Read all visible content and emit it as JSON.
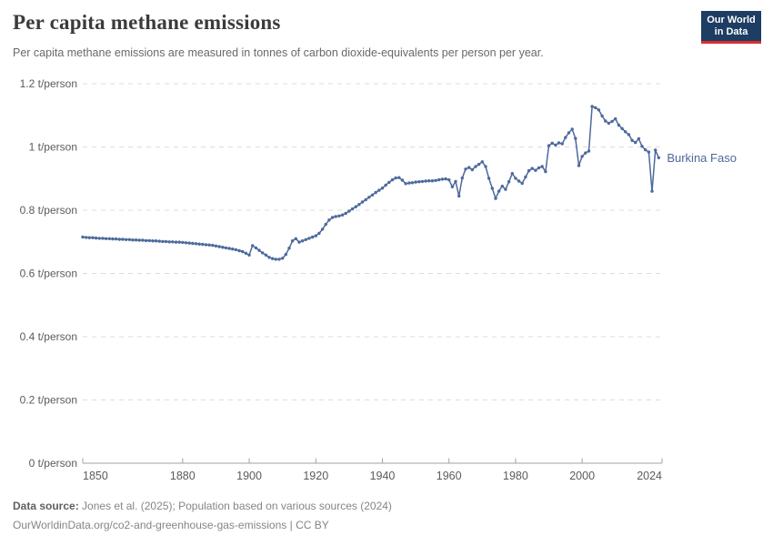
{
  "header": {
    "title": "Per capita methane emissions",
    "subtitle": "Per capita methane emissions are measured in tonnes of carbon dioxide-equivalents per person per year.",
    "logo": {
      "line1": "Our World",
      "line2": "in Data",
      "bg_color": "#1d3d63",
      "accent_color": "#d7302f"
    }
  },
  "chart_data": {
    "type": "line",
    "title": "Per capita methane emissions",
    "xlabel": "",
    "ylabel": "t/person",
    "xlim": [
      1850,
      2024
    ],
    "ylim": [
      0,
      1.2
    ],
    "grid": "horizontal-dashed",
    "legend_position": "end-of-line-label",
    "x_ticks": [
      {
        "v": 1850,
        "label": "1850"
      },
      {
        "v": 1880,
        "label": "1880"
      },
      {
        "v": 1900,
        "label": "1900"
      },
      {
        "v": 1920,
        "label": "1920"
      },
      {
        "v": 1940,
        "label": "1940"
      },
      {
        "v": 1960,
        "label": "1960"
      },
      {
        "v": 1980,
        "label": "1980"
      },
      {
        "v": 2000,
        "label": "2000"
      },
      {
        "v": 2024,
        "label": "2024"
      }
    ],
    "y_ticks": [
      {
        "v": 0,
        "label": "0 t/person"
      },
      {
        "v": 0.2,
        "label": "0.2 t/person"
      },
      {
        "v": 0.4,
        "label": "0.4 t/person"
      },
      {
        "v": 0.6,
        "label": "0.6 t/person"
      },
      {
        "v": 0.8,
        "label": "0.8 t/person"
      },
      {
        "v": 1,
        "label": "1 t/person"
      },
      {
        "v": 1.2,
        "label": "1.2 t/person"
      }
    ],
    "series": [
      {
        "name": "Burkina Faso",
        "color": "#4c6a9c",
        "x_start": 1850,
        "x_step": 1,
        "values": [
          0.715,
          0.714,
          0.713,
          0.713,
          0.712,
          0.711,
          0.711,
          0.71,
          0.71,
          0.709,
          0.709,
          0.708,
          0.708,
          0.707,
          0.707,
          0.706,
          0.706,
          0.705,
          0.705,
          0.704,
          0.704,
          0.703,
          0.703,
          0.702,
          0.701,
          0.701,
          0.7,
          0.7,
          0.699,
          0.699,
          0.698,
          0.697,
          0.696,
          0.695,
          0.694,
          0.693,
          0.692,
          0.691,
          0.69,
          0.689,
          0.687,
          0.685,
          0.683,
          0.681,
          0.679,
          0.677,
          0.675,
          0.672,
          0.669,
          0.664,
          0.658,
          0.688,
          0.681,
          0.673,
          0.665,
          0.658,
          0.651,
          0.647,
          0.645,
          0.645,
          0.648,
          0.66,
          0.68,
          0.703,
          0.71,
          0.699,
          0.703,
          0.707,
          0.711,
          0.715,
          0.719,
          0.727,
          0.74,
          0.755,
          0.769,
          0.777,
          0.78,
          0.782,
          0.785,
          0.79,
          0.797,
          0.804,
          0.811,
          0.818,
          0.826,
          0.833,
          0.841,
          0.848,
          0.856,
          0.863,
          0.87,
          0.879,
          0.888,
          0.896,
          0.902,
          0.903,
          0.895,
          0.884,
          0.886,
          0.887,
          0.889,
          0.89,
          0.891,
          0.892,
          0.893,
          0.893,
          0.894,
          0.896,
          0.898,
          0.899,
          0.896,
          0.874,
          0.891,
          0.845,
          0.902,
          0.93,
          0.935,
          0.928,
          0.938,
          0.945,
          0.953,
          0.938,
          0.901,
          0.869,
          0.837,
          0.86,
          0.876,
          0.866,
          0.89,
          0.916,
          0.901,
          0.892,
          0.885,
          0.905,
          0.925,
          0.932,
          0.926,
          0.934,
          0.938,
          0.922,
          1.004,
          1.012,
          1.006,
          1.013,
          1.01,
          1.03,
          1.045,
          1.056,
          1.027,
          0.941,
          0.97,
          0.981,
          0.987,
          1.128,
          1.124,
          1.117,
          1.098,
          1.082,
          1.075,
          1.081,
          1.089,
          1.069,
          1.058,
          1.048,
          1.039,
          1.021,
          1.014,
          1.026,
          1.002,
          0.991,
          0.984,
          0.86,
          0.99,
          0.966
        ],
        "end_label": "Burkina Faso"
      }
    ]
  },
  "footer": {
    "datasource_label": "Data source:",
    "datasource_text": "Jones et al. (2025); Population based on various sources (2024)",
    "url": "OurWorldinData.org/co2-and-greenhouse-gas-emissions",
    "separator": "|",
    "license": "CC BY"
  }
}
